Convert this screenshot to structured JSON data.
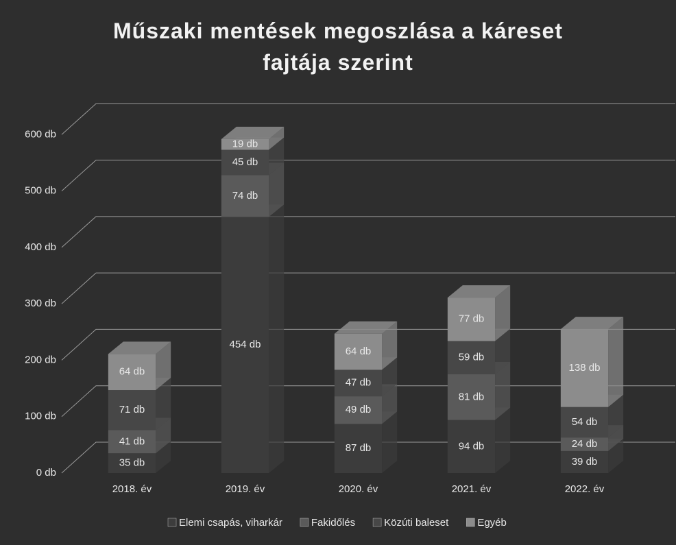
{
  "chart_data": {
    "type": "bar3d_stacked",
    "title": "Műszaki mentések megoszlása a káreset fajtája szerint",
    "categories": [
      "2018. év",
      "2019. év",
      "2020. év",
      "2021. év",
      "2022. év"
    ],
    "series": [
      {
        "name": "Elemi csapás, viharkár",
        "color": "#3c3c3c",
        "values": [
          35,
          454,
          87,
          94,
          39
        ],
        "value_labels": [
          "35 db",
          "454 db",
          "87 db",
          "94 db",
          "39 db"
        ]
      },
      {
        "name": "Fakidőlés",
        "color": "#5a5a5a",
        "values": [
          41,
          74,
          49,
          81,
          24
        ],
        "value_labels": [
          "41 db",
          "74 db",
          "49 db",
          "81 db",
          "24 db"
        ]
      },
      {
        "name": "Közúti baleset",
        "color": "#474747",
        "values": [
          71,
          45,
          47,
          59,
          54
        ],
        "value_labels": [
          "71 db",
          "45 db",
          "47 db",
          "59 db",
          "54 db"
        ]
      },
      {
        "name": "Egyéb",
        "color": "#8c8c8c",
        "values": [
          64,
          19,
          64,
          77,
          138
        ],
        "value_labels": [
          "64 db",
          "19 db",
          "64 db",
          "77 db",
          "138 db"
        ]
      }
    ],
    "ylim": [
      0,
      700
    ],
    "yticks": [
      {
        "value": 0,
        "label": "0 db"
      },
      {
        "value": 100,
        "label": "100 db"
      },
      {
        "value": 200,
        "label": "200 db"
      },
      {
        "value": 300,
        "label": "300 db"
      },
      {
        "value": 400,
        "label": "400 db"
      },
      {
        "value": 500,
        "label": "500 db"
      },
      {
        "value": 600,
        "label": "600 db"
      }
    ],
    "grid": true,
    "legend": "bottom"
  }
}
